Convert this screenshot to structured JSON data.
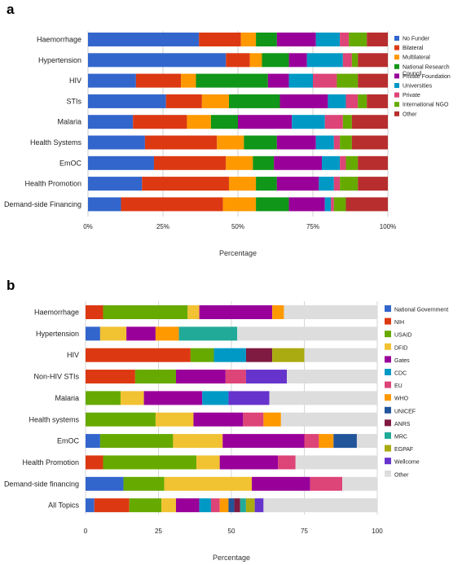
{
  "chart_data": [
    {
      "type": "bar",
      "orientation": "horizontal",
      "stacked": true,
      "panel": "a",
      "categories": [
        "Haemorrhage",
        "Hypertension",
        "HIV",
        "STIs",
        "Malaria",
        "Health Systems",
        "EmOC",
        "Health Promotion",
        "Demand-side Financing"
      ],
      "tick_labels": [
        "0%",
        "25%",
        "50%",
        "75%",
        "100%"
      ],
      "xlabel": "Percentage",
      "xlim": [
        0,
        100
      ],
      "grid": true,
      "legend_position": "right",
      "series": [
        {
          "name": "No Funder",
          "color": "#3366cc",
          "values": [
            37,
            46,
            16,
            26,
            15,
            19,
            22,
            18,
            11
          ]
        },
        {
          "name": "Bilateral",
          "color": "#dc3912",
          "values": [
            14,
            8,
            15,
            12,
            18,
            24,
            24,
            29,
            34
          ]
        },
        {
          "name": "Multilateral",
          "color": "#ff9900",
          "values": [
            5,
            4,
            5,
            9,
            8,
            9,
            9,
            9,
            11
          ]
        },
        {
          "name": "National Research Council",
          "color": "#109618",
          "values": [
            7,
            9,
            24,
            17,
            9,
            11,
            7,
            7,
            11
          ]
        },
        {
          "name": "Private Foundation",
          "color": "#990099",
          "values": [
            13,
            6,
            7,
            16,
            18,
            13,
            16,
            14,
            12
          ]
        },
        {
          "name": "Universities",
          "color": "#0099c6",
          "values": [
            8,
            12,
            8,
            6,
            11,
            6,
            6,
            5,
            2
          ]
        },
        {
          "name": "Private",
          "color": "#dd4477",
          "values": [
            3,
            3,
            8,
            4,
            6,
            2,
            2,
            2,
            1
          ]
        },
        {
          "name": "International NGO",
          "color": "#66aa00",
          "values": [
            6,
            2,
            7,
            3,
            3,
            4,
            4,
            6,
            4
          ]
        },
        {
          "name": "Other",
          "color": "#b82e2e",
          "values": [
            7,
            10,
            10,
            7,
            12,
            12,
            10,
            10,
            14
          ]
        }
      ]
    },
    {
      "type": "bar",
      "orientation": "horizontal",
      "stacked": true,
      "panel": "b",
      "categories": [
        "Haemorrhage",
        "Hypertension",
        "HIV",
        "Non-HIV STIs",
        "Malaria",
        "Health systems",
        "EmOC",
        "Health Promotion",
        "Demand-side financing",
        "All Topics"
      ],
      "tick_labels": [
        "0",
        "25",
        "50",
        "75",
        "100"
      ],
      "xlabel": "Percentage",
      "xlim": [
        0,
        100
      ],
      "grid": true,
      "legend_position": "right",
      "series": [
        {
          "name": "National Government",
          "color": "#3366cc",
          "values": [
            0,
            5,
            0,
            0,
            0,
            0,
            5,
            0,
            13,
            3
          ]
        },
        {
          "name": "NIH",
          "color": "#dc3912",
          "values": [
            6,
            0,
            36,
            17,
            0,
            0,
            0,
            6,
            0,
            12
          ]
        },
        {
          "name": "USAID",
          "color": "#66aa00",
          "values": [
            29,
            0,
            8,
            14,
            12,
            24,
            25,
            32,
            14,
            11
          ]
        },
        {
          "name": "DFID",
          "color": "#f1c232",
          "values": [
            4,
            9,
            0,
            0,
            8,
            13,
            17,
            8,
            30,
            5
          ]
        },
        {
          "name": "Gates",
          "color": "#990099",
          "values": [
            25,
            10,
            0,
            17,
            20,
            17,
            28,
            20,
            20,
            8
          ]
        },
        {
          "name": "CDC",
          "color": "#0099c6",
          "values": [
            0,
            0,
            11,
            0,
            9,
            0,
            0,
            0,
            0,
            4
          ]
        },
        {
          "name": "EU",
          "color": "#dd4477",
          "values": [
            0,
            0,
            0,
            7,
            0,
            7,
            5,
            6,
            11,
            3
          ]
        },
        {
          "name": "WHO",
          "color": "#ff9900",
          "values": [
            4,
            8,
            0,
            0,
            0,
            6,
            5,
            0,
            0,
            3
          ]
        },
        {
          "name": "UNICEF",
          "color": "#22559a",
          "values": [
            0,
            0,
            0,
            0,
            0,
            0,
            8,
            0,
            0,
            2
          ]
        },
        {
          "name": "ANRS",
          "color": "#7f1a40",
          "values": [
            0,
            0,
            9,
            0,
            0,
            0,
            0,
            0,
            0,
            2
          ]
        },
        {
          "name": "MRC",
          "color": "#22aa99",
          "values": [
            0,
            20,
            0,
            0,
            0,
            0,
            0,
            0,
            0,
            2
          ]
        },
        {
          "name": "EGPAF",
          "color": "#aaaa11",
          "values": [
            0,
            0,
            11,
            0,
            0,
            0,
            0,
            0,
            0,
            3
          ]
        },
        {
          "name": "Wellcome",
          "color": "#6633cc",
          "values": [
            0,
            0,
            0,
            14,
            14,
            0,
            0,
            0,
            0,
            3
          ]
        },
        {
          "name": "Other",
          "color": "#dddddd",
          "values": [
            32,
            48,
            25,
            31,
            37,
            33,
            7,
            28,
            12,
            39
          ]
        }
      ]
    }
  ]
}
